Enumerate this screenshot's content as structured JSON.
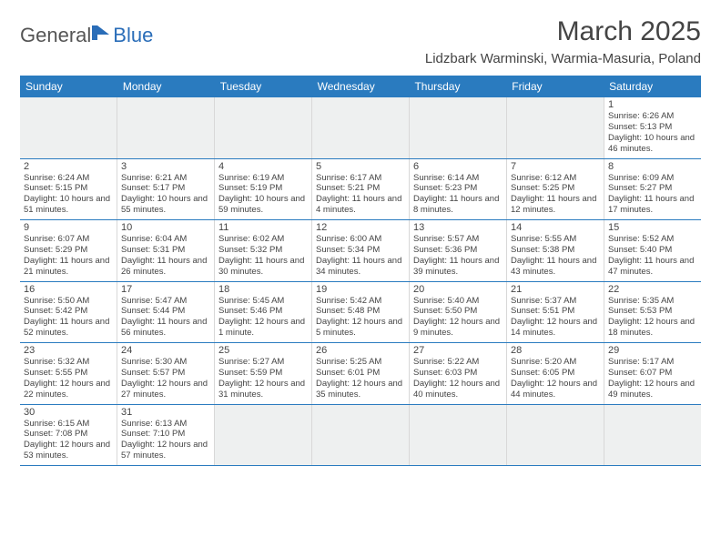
{
  "logo": {
    "text1": "General",
    "text2": "Blue",
    "accent": "#2a6db8"
  },
  "title": "March 2025",
  "location": "Lidzbark Warminski, Warmia-Masuria, Poland",
  "colors": {
    "header_bg": "#2a7bbf",
    "header_fg": "#ffffff",
    "row_border": "#2a7bbf",
    "cell_border": "#d8d8d8",
    "empty_bg": "#eef0f0",
    "text": "#444444",
    "page_bg": "#ffffff"
  },
  "day_headers": [
    "Sunday",
    "Monday",
    "Tuesday",
    "Wednesday",
    "Thursday",
    "Friday",
    "Saturday"
  ],
  "weeks": [
    [
      null,
      null,
      null,
      null,
      null,
      null,
      {
        "n": "1",
        "sr": "6:26 AM",
        "ss": "5:13 PM",
        "dl": "10 hours and 46 minutes."
      }
    ],
    [
      {
        "n": "2",
        "sr": "6:24 AM",
        "ss": "5:15 PM",
        "dl": "10 hours and 51 minutes."
      },
      {
        "n": "3",
        "sr": "6:21 AM",
        "ss": "5:17 PM",
        "dl": "10 hours and 55 minutes."
      },
      {
        "n": "4",
        "sr": "6:19 AM",
        "ss": "5:19 PM",
        "dl": "10 hours and 59 minutes."
      },
      {
        "n": "5",
        "sr": "6:17 AM",
        "ss": "5:21 PM",
        "dl": "11 hours and 4 minutes."
      },
      {
        "n": "6",
        "sr": "6:14 AM",
        "ss": "5:23 PM",
        "dl": "11 hours and 8 minutes."
      },
      {
        "n": "7",
        "sr": "6:12 AM",
        "ss": "5:25 PM",
        "dl": "11 hours and 12 minutes."
      },
      {
        "n": "8",
        "sr": "6:09 AM",
        "ss": "5:27 PM",
        "dl": "11 hours and 17 minutes."
      }
    ],
    [
      {
        "n": "9",
        "sr": "6:07 AM",
        "ss": "5:29 PM",
        "dl": "11 hours and 21 minutes."
      },
      {
        "n": "10",
        "sr": "6:04 AM",
        "ss": "5:31 PM",
        "dl": "11 hours and 26 minutes."
      },
      {
        "n": "11",
        "sr": "6:02 AM",
        "ss": "5:32 PM",
        "dl": "11 hours and 30 minutes."
      },
      {
        "n": "12",
        "sr": "6:00 AM",
        "ss": "5:34 PM",
        "dl": "11 hours and 34 minutes."
      },
      {
        "n": "13",
        "sr": "5:57 AM",
        "ss": "5:36 PM",
        "dl": "11 hours and 39 minutes."
      },
      {
        "n": "14",
        "sr": "5:55 AM",
        "ss": "5:38 PM",
        "dl": "11 hours and 43 minutes."
      },
      {
        "n": "15",
        "sr": "5:52 AM",
        "ss": "5:40 PM",
        "dl": "11 hours and 47 minutes."
      }
    ],
    [
      {
        "n": "16",
        "sr": "5:50 AM",
        "ss": "5:42 PM",
        "dl": "11 hours and 52 minutes."
      },
      {
        "n": "17",
        "sr": "5:47 AM",
        "ss": "5:44 PM",
        "dl": "11 hours and 56 minutes."
      },
      {
        "n": "18",
        "sr": "5:45 AM",
        "ss": "5:46 PM",
        "dl": "12 hours and 1 minute."
      },
      {
        "n": "19",
        "sr": "5:42 AM",
        "ss": "5:48 PM",
        "dl": "12 hours and 5 minutes."
      },
      {
        "n": "20",
        "sr": "5:40 AM",
        "ss": "5:50 PM",
        "dl": "12 hours and 9 minutes."
      },
      {
        "n": "21",
        "sr": "5:37 AM",
        "ss": "5:51 PM",
        "dl": "12 hours and 14 minutes."
      },
      {
        "n": "22",
        "sr": "5:35 AM",
        "ss": "5:53 PM",
        "dl": "12 hours and 18 minutes."
      }
    ],
    [
      {
        "n": "23",
        "sr": "5:32 AM",
        "ss": "5:55 PM",
        "dl": "12 hours and 22 minutes."
      },
      {
        "n": "24",
        "sr": "5:30 AM",
        "ss": "5:57 PM",
        "dl": "12 hours and 27 minutes."
      },
      {
        "n": "25",
        "sr": "5:27 AM",
        "ss": "5:59 PM",
        "dl": "12 hours and 31 minutes."
      },
      {
        "n": "26",
        "sr": "5:25 AM",
        "ss": "6:01 PM",
        "dl": "12 hours and 35 minutes."
      },
      {
        "n": "27",
        "sr": "5:22 AM",
        "ss": "6:03 PM",
        "dl": "12 hours and 40 minutes."
      },
      {
        "n": "28",
        "sr": "5:20 AM",
        "ss": "6:05 PM",
        "dl": "12 hours and 44 minutes."
      },
      {
        "n": "29",
        "sr": "5:17 AM",
        "ss": "6:07 PM",
        "dl": "12 hours and 49 minutes."
      }
    ],
    [
      {
        "n": "30",
        "sr": "6:15 AM",
        "ss": "7:08 PM",
        "dl": "12 hours and 53 minutes."
      },
      {
        "n": "31",
        "sr": "6:13 AM",
        "ss": "7:10 PM",
        "dl": "12 hours and 57 minutes."
      },
      null,
      null,
      null,
      null,
      null
    ]
  ],
  "labels": {
    "sunrise": "Sunrise: ",
    "sunset": "Sunset: ",
    "daylight": "Daylight: "
  }
}
